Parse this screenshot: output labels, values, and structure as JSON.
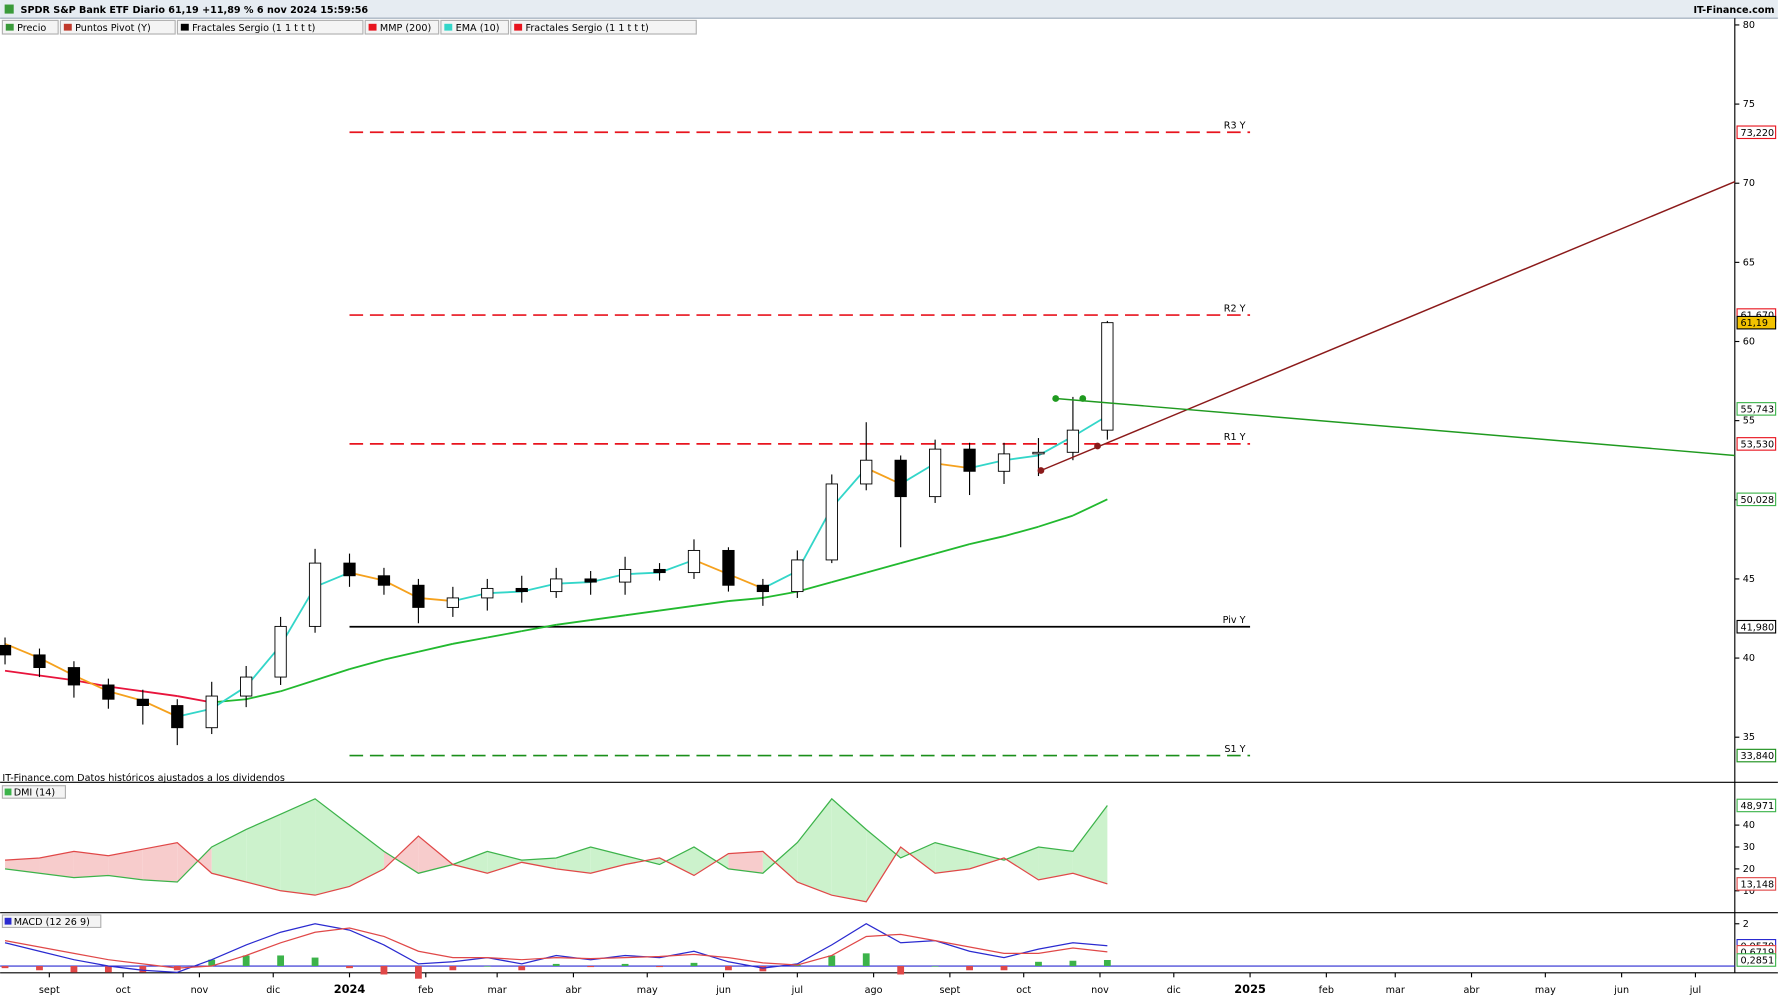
{
  "header": {
    "title": "SPDR S&P Bank ETF Diario 61,19 +11,89 % 6 nov 2024 15:59:56",
    "brand": "IT-Finance.com",
    "legend": [
      {
        "label": "Precio",
        "color": "#3a9a3a"
      },
      {
        "label": "Puntos Pivot (Y)",
        "color": "#c0392b"
      },
      {
        "label": "Fractales Sergio (1 1 t t t)",
        "color": "#000000"
      },
      {
        "label": "MMP (200)",
        "color": "#e8141e"
      },
      {
        "label": "EMA (10)",
        "color": "#33d6c9"
      },
      {
        "label": "Fractales Sergio (1 1 t t t)",
        "color": "#e8141e"
      }
    ]
  },
  "chart_data": [
    {
      "type": "candlestick",
      "x": [
        "2023-08-14",
        "2023-08-28",
        "2023-09-11",
        "2023-09-25",
        "2023-10-09",
        "2023-10-23",
        "2023-11-06",
        "2023-11-20",
        "2023-12-04",
        "2023-12-18",
        "2024-01-01",
        "2024-01-15",
        "2024-01-29",
        "2024-02-12",
        "2024-02-26",
        "2024-03-11",
        "2024-03-25",
        "2024-04-08",
        "2024-04-22",
        "2024-05-06",
        "2024-05-20",
        "2024-06-03",
        "2024-06-17",
        "2024-07-01",
        "2024-07-15",
        "2024-07-29",
        "2024-08-12",
        "2024-08-26",
        "2024-09-09",
        "2024-09-23",
        "2024-10-07",
        "2024-10-21",
        "2024-11-04"
      ],
      "open": [
        40.8,
        40.2,
        39.4,
        38.3,
        37.4,
        37.0,
        35.6,
        37.6,
        38.8,
        42.0,
        46.0,
        45.2,
        44.6,
        43.2,
        43.8,
        44.4,
        44.2,
        45.0,
        44.8,
        45.6,
        45.4,
        46.8,
        44.6,
        44.2,
        46.2,
        51.0,
        52.5,
        50.2,
        53.2,
        51.8,
        52.9,
        53.0,
        54.4
      ],
      "high": [
        41.3,
        40.6,
        39.8,
        38.7,
        38.0,
        37.4,
        38.5,
        39.5,
        42.6,
        46.9,
        46.6,
        45.7,
        45.0,
        44.5,
        45.0,
        45.2,
        45.7,
        45.5,
        46.4,
        46.0,
        47.5,
        47.0,
        45.0,
        46.8,
        51.6,
        54.9,
        52.8,
        53.8,
        53.6,
        53.6,
        53.9,
        56.5,
        61.3
      ],
      "low": [
        39.6,
        38.8,
        37.5,
        36.8,
        35.8,
        34.5,
        35.2,
        36.9,
        38.3,
        41.6,
        44.5,
        44.0,
        42.2,
        42.6,
        43.0,
        43.5,
        43.8,
        44.0,
        44.0,
        44.9,
        45.0,
        44.2,
        43.3,
        43.8,
        46.0,
        50.6,
        47.0,
        49.8,
        50.3,
        51.0,
        51.5,
        52.5,
        53.8
      ],
      "close": [
        40.2,
        39.4,
        38.3,
        37.4,
        37.0,
        35.6,
        37.6,
        38.8,
        42.0,
        46.0,
        45.2,
        44.6,
        43.2,
        43.8,
        44.4,
        44.2,
        45.0,
        44.8,
        45.6,
        45.4,
        46.8,
        44.6,
        44.2,
        46.2,
        51.0,
        52.5,
        50.2,
        53.2,
        51.8,
        52.9,
        53.0,
        54.4,
        61.19
      ],
      "color_up": "#ffffff",
      "color_down": "#000000",
      "ema": {
        "values": [
          40.9,
          40.0,
          38.9,
          37.9,
          37.3,
          36.3,
          36.8,
          38.2,
          40.8,
          44.5,
          45.4,
          44.9,
          43.8,
          43.6,
          44.1,
          44.2,
          44.7,
          44.8,
          45.3,
          45.4,
          46.2,
          45.3,
          44.4,
          45.5,
          49.5,
          52.0,
          51.0,
          52.3,
          52.0,
          52.5,
          52.8,
          54.0,
          55.3
        ],
        "up_color": "#33d6c9",
        "down_color": "#f5a11d"
      },
      "mmp": {
        "values": [
          39.2,
          38.9,
          38.6,
          38.2,
          37.9,
          37.6,
          37.2,
          37.4,
          37.9,
          38.6,
          39.3,
          39.9,
          40.4,
          40.9,
          41.3,
          41.7,
          42.1,
          42.4,
          42.7,
          43.0,
          43.3,
          43.6,
          43.8,
          44.2,
          44.8,
          45.4,
          46.0,
          46.6,
          47.2,
          47.7,
          48.3,
          49.0,
          50.028
        ],
        "up_color": "#22b92f",
        "down_color": "#e8143c"
      },
      "pivot_start": "2024-01-01",
      "pivot_end": "2025-01-01",
      "pivots": [
        {
          "name": "R3 Y",
          "value": 73.22,
          "label": "73,220",
          "color": "#e8141e",
          "dash": true
        },
        {
          "name": "R2 Y",
          "value": 61.67,
          "label": "61,670",
          "color": "#e8141e",
          "dash": true
        },
        {
          "name": "R1 Y",
          "value": 53.53,
          "label": "53,530",
          "color": "#e8141e",
          "dash": true
        },
        {
          "name": "Piv Y",
          "value": 41.98,
          "label": "41,980",
          "color": "#000000",
          "dash": false
        },
        {
          "name": "S1 Y",
          "value": 33.84,
          "label": "33,840",
          "color": "#1a8f1a",
          "dash": true
        }
      ],
      "trendlines": [
        {
          "color": "#8b1a1a",
          "x": [
            "2024-10-08",
            "2025-07-17"
          ],
          "y": [
            51.85,
            70.1
          ]
        },
        {
          "color": "#1f9a1f",
          "x": [
            "2024-10-14",
            "2025-07-17"
          ],
          "y": [
            56.4,
            52.8
          ]
        }
      ],
      "fractals": [
        {
          "x": "2024-10-14",
          "y": 56.4,
          "color": "#1f9a1f"
        },
        {
          "x": "2024-10-25",
          "y": 56.4,
          "color": "#1f9a1f"
        },
        {
          "x": "2024-10-08",
          "y": 51.85,
          "color": "#8b1a1a"
        },
        {
          "x": "2024-10-31",
          "y": 53.4,
          "color": "#8b1a1a"
        }
      ],
      "markers": [
        {
          "value": 61.19,
          "label": "61,19",
          "color": "#000000",
          "fill": "#f2c200"
        },
        {
          "value": 55.743,
          "label": "55,743",
          "color": "#3cb34a"
        },
        {
          "value": 50.028,
          "label": "50,028",
          "color": "#3cb34a"
        }
      ],
      "ylim": [
        32.15,
        80.43
      ],
      "yticks": [
        35,
        40,
        45,
        50,
        55,
        60,
        65,
        70,
        75,
        80
      ],
      "footer": "IT-Finance.com Datos históricos ajustados a los dividendos"
    },
    {
      "type": "dmi",
      "title": "DMI (14)",
      "plus": {
        "color": "#3cb34a",
        "fill": "#ccf2cc",
        "values": [
          20,
          18,
          16,
          17,
          15,
          14,
          30,
          38,
          45,
          52,
          40,
          28,
          18,
          22,
          28,
          24,
          25,
          30,
          26,
          22,
          30,
          20,
          18,
          32,
          52,
          38,
          25,
          32,
          28,
          24,
          30,
          28,
          48.971
        ]
      },
      "minus": {
        "color": "#e04848",
        "fill": "#f7cccc",
        "values": [
          24,
          25,
          28,
          26,
          29,
          32,
          18,
          14,
          10,
          8,
          12,
          20,
          35,
          22,
          18,
          23,
          20,
          18,
          22,
          25,
          17,
          27,
          28,
          14,
          8,
          5,
          30,
          18,
          20,
          25,
          15,
          18,
          13.148
        ]
      },
      "markers": [
        {
          "value": 48.971,
          "label": "48,971",
          "color": "#3cb34a"
        },
        {
          "value": 13.148,
          "label": "13,148",
          "color": "#e04848"
        }
      ],
      "ylim": [
        0,
        58.5
      ],
      "yticks": [
        10,
        20,
        30,
        40
      ]
    },
    {
      "type": "macd",
      "title": "MACD (12 26 9)",
      "macd": {
        "color": "#2a2ad0",
        "values": [
          1.1,
          0.7,
          0.3,
          0.0,
          -0.2,
          -0.3,
          0.3,
          1.0,
          1.6,
          2.0,
          1.7,
          1.0,
          0.1,
          0.2,
          0.4,
          0.1,
          0.5,
          0.3,
          0.5,
          0.4,
          0.7,
          0.2,
          -0.1,
          0.1,
          1.0,
          2.0,
          1.1,
          1.2,
          0.7,
          0.4,
          0.8,
          1.1,
          0.957
        ]
      },
      "signal": {
        "color": "#e04848",
        "values": [
          1.2,
          0.9,
          0.6,
          0.3,
          0.1,
          -0.1,
          0.0,
          0.5,
          1.1,
          1.6,
          1.8,
          1.4,
          0.7,
          0.4,
          0.4,
          0.3,
          0.4,
          0.35,
          0.4,
          0.45,
          0.55,
          0.4,
          0.15,
          0.05,
          0.5,
          1.4,
          1.5,
          1.2,
          0.9,
          0.6,
          0.6,
          0.85,
          0.6719
        ]
      },
      "histogram": {
        "up_color": "#3cb34a",
        "down_color": "#e04848",
        "values": [
          -0.1,
          -0.2,
          -0.3,
          -0.3,
          -0.3,
          -0.2,
          0.3,
          0.5,
          0.5,
          0.4,
          -0.1,
          -0.4,
          -0.6,
          -0.2,
          0.0,
          -0.2,
          0.1,
          -0.05,
          0.1,
          -0.05,
          0.15,
          -0.2,
          -0.25,
          0.05,
          0.5,
          0.6,
          -0.4,
          0.0,
          -0.2,
          -0.2,
          0.2,
          0.25,
          0.2851
        ]
      },
      "markers": [
        {
          "value": 0.957,
          "label": "0,9570",
          "color": "#2a2ad0"
        },
        {
          "value": 0.6719,
          "label": "0,6719",
          "color": "#e04848"
        },
        {
          "value": 0.2851,
          "label": "0,2851",
          "color": "#3cb34a"
        }
      ],
      "ylim": [
        -0.32,
        2.47
      ],
      "yticks": [
        2
      ],
      "xlim": [
        "2023-08-12",
        "2025-07-17"
      ],
      "xticks": [
        {
          "value": "2023-09-01",
          "label": "sept"
        },
        {
          "value": "2023-10-01",
          "label": "oct"
        },
        {
          "value": "2023-11-01",
          "label": "nov"
        },
        {
          "value": "2023-12-01",
          "label": "dic"
        },
        {
          "value": "2024-01-01",
          "label": "2024"
        },
        {
          "value": "2024-02-01",
          "label": "feb"
        },
        {
          "value": "2024-03-01",
          "label": "mar"
        },
        {
          "value": "2024-04-01",
          "label": "abr"
        },
        {
          "value": "2024-05-01",
          "label": "may"
        },
        {
          "value": "2024-06-01",
          "label": "jun"
        },
        {
          "value": "2024-07-01",
          "label": "jul"
        },
        {
          "value": "2024-08-01",
          "label": "ago"
        },
        {
          "value": "2024-09-01",
          "label": "sept"
        },
        {
          "value": "2024-10-01",
          "label": "oct"
        },
        {
          "value": "2024-11-01",
          "label": "nov"
        },
        {
          "value": "2024-12-01",
          "label": "dic"
        },
        {
          "value": "2025-01-01",
          "label": "2025"
        },
        {
          "value": "2025-02-01",
          "label": "feb"
        },
        {
          "value": "2025-03-01",
          "label": "mar"
        },
        {
          "value": "2025-04-01",
          "label": "abr"
        },
        {
          "value": "2025-05-01",
          "label": "may"
        },
        {
          "value": "2025-06-01",
          "label": "jun"
        },
        {
          "value": "2025-07-01",
          "label": "jul"
        }
      ]
    }
  ]
}
